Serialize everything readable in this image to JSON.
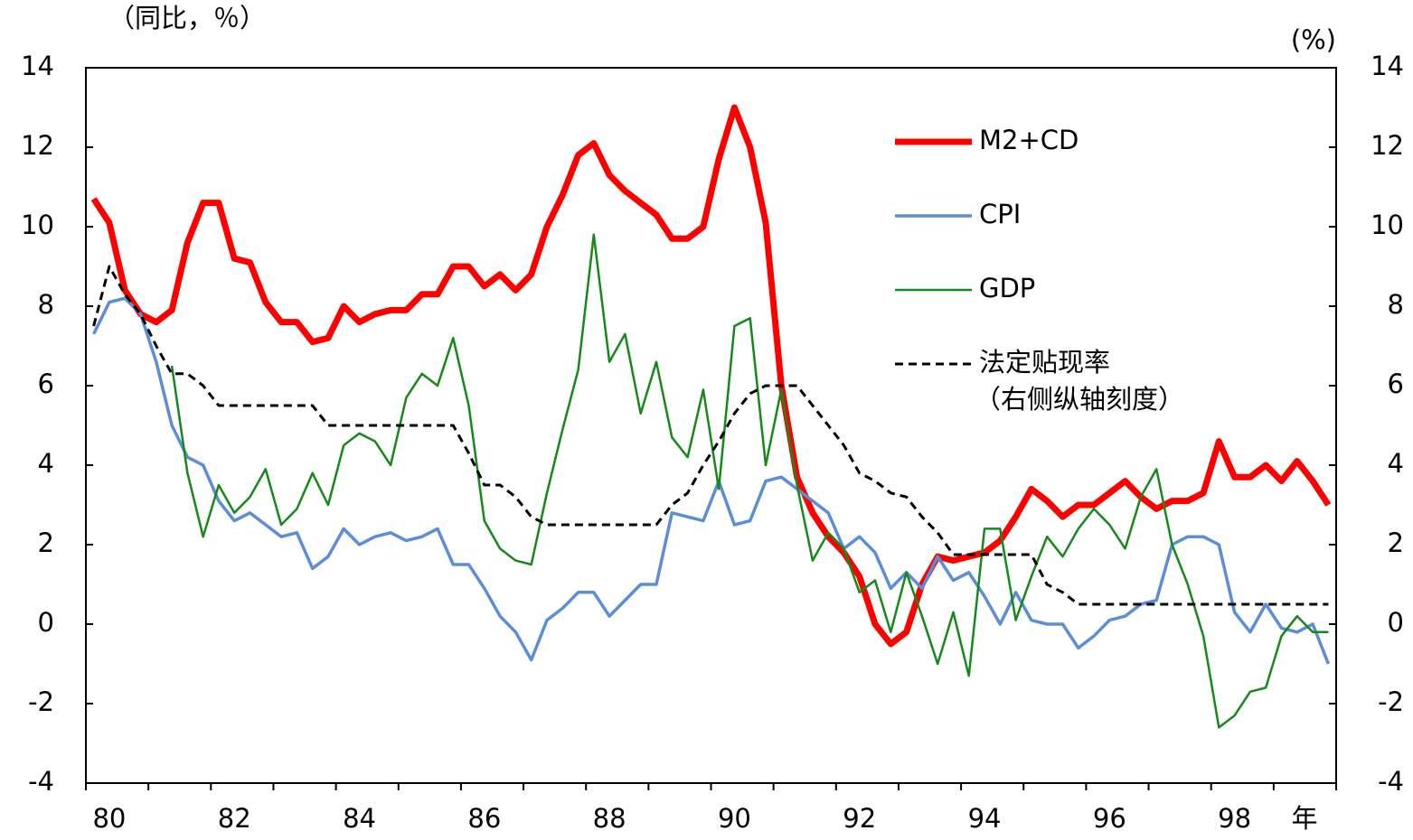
{
  "chart_data": {
    "type": "line",
    "y_label": "（同比，％）",
    "y2_label": "(%)",
    "x_unit": "年",
    "categories": [
      null,
      "80",
      null,
      null,
      null,
      null,
      null,
      null,
      null,
      "82",
      null,
      null,
      null,
      null,
      null,
      null,
      null,
      "84",
      null,
      null,
      null,
      null,
      null,
      null,
      null,
      "86",
      null,
      null,
      null,
      null,
      null,
      null,
      null,
      "88",
      null,
      null,
      null,
      null,
      null,
      null,
      null,
      "90",
      null,
      null,
      null,
      null,
      null,
      null,
      null,
      "92",
      null,
      null,
      null,
      null,
      null,
      null,
      null,
      "94",
      null,
      null,
      null,
      null,
      null,
      null,
      null,
      "96",
      null,
      null,
      null,
      null,
      null,
      null,
      null,
      "98",
      null,
      null,
      null,
      null,
      null,
      null
    ],
    "ylim": [
      -4,
      14
    ],
    "yticks": [
      -4,
      -2,
      0,
      2,
      4,
      6,
      8,
      10,
      12,
      14
    ],
    "y2lim": [
      -4,
      14
    ],
    "y2ticks": [
      -4,
      -2,
      0,
      2,
      4,
      6,
      8,
      10,
      12,
      14
    ],
    "grid": false,
    "legend": "upper right",
    "series": [
      {
        "name": "M2+CD",
        "color": "#ff0000",
        "values": [
          10.7,
          10.1,
          8.4,
          7.8,
          7.6,
          7.9,
          9.6,
          10.6,
          10.6,
          9.2,
          9.1,
          8.1,
          7.6,
          7.6,
          7.1,
          7.2,
          8.0,
          7.6,
          7.8,
          7.9,
          7.9,
          8.3,
          8.3,
          9.0,
          9.0,
          8.5,
          8.8,
          8.4,
          8.8,
          10.0,
          10.8,
          11.8,
          12.1,
          11.3,
          10.9,
          10.6,
          10.3,
          9.7,
          9.7,
          10.0,
          11.7,
          13.0,
          12.0,
          10.1,
          6.0,
          3.7,
          2.8,
          2.2,
          1.8,
          1.2,
          0.0,
          -0.5,
          -0.2,
          1.0,
          1.7,
          1.6,
          1.7,
          1.8,
          2.1,
          2.7,
          3.4,
          3.1,
          2.7,
          3.0,
          3.0,
          3.3,
          3.6,
          3.2,
          2.9,
          3.1,
          3.1,
          3.3,
          4.6,
          3.7,
          3.7,
          4.0,
          3.6,
          4.1,
          3.6,
          3.0
        ]
      },
      {
        "name": "CPI",
        "color": "#5b8ed6",
        "values": [
          7.3,
          8.1,
          8.2,
          7.8,
          6.6,
          5.0,
          4.2,
          4.0,
          3.1,
          2.6,
          2.8,
          2.5,
          2.2,
          2.3,
          1.4,
          1.7,
          2.4,
          2.0,
          2.2,
          2.3,
          2.1,
          2.2,
          2.4,
          1.5,
          1.5,
          0.9,
          0.2,
          -0.2,
          -0.9,
          0.1,
          0.4,
          0.8,
          0.8,
          0.2,
          0.6,
          1.0,
          1.0,
          2.8,
          2.7,
          2.6,
          3.6,
          2.5,
          2.6,
          3.6,
          3.7,
          3.4,
          3.1,
          2.8,
          1.9,
          2.2,
          1.8,
          0.9,
          1.3,
          0.9,
          1.7,
          1.1,
          1.3,
          0.7,
          0.0,
          0.8,
          0.1,
          0.0,
          0.0,
          -0.6,
          -0.3,
          0.1,
          0.2,
          0.5,
          0.6,
          2.0,
          2.2,
          2.2,
          2.0,
          0.3,
          -0.2,
          0.5,
          -0.1,
          -0.2,
          0.0,
          -1.0
        ]
      },
      {
        "name": "GDP",
        "color": "#16891a",
        "values": [
          null,
          null,
          null,
          null,
          null,
          6.5,
          3.8,
          2.2,
          3.5,
          2.8,
          3.2,
          3.9,
          2.5,
          2.9,
          3.8,
          3.0,
          4.5,
          4.8,
          4.6,
          4.0,
          5.7,
          6.3,
          6.0,
          7.2,
          5.5,
          2.6,
          1.9,
          1.6,
          1.5,
          3.3,
          4.9,
          6.4,
          9.8,
          6.6,
          7.3,
          5.3,
          6.6,
          4.7,
          4.2,
          5.9,
          3.4,
          7.5,
          7.7,
          4.0,
          5.9,
          3.5,
          1.6,
          2.3,
          1.9,
          0.8,
          1.1,
          -0.2,
          1.3,
          0.2,
          -1.0,
          0.3,
          -1.3,
          2.4,
          2.4,
          0.1,
          1.2,
          2.2,
          1.7,
          2.4,
          2.9,
          2.5,
          1.9,
          3.2,
          3.9,
          2.0,
          1.0,
          -0.3,
          -2.6,
          -2.3,
          -1.7,
          -1.6,
          -0.3,
          0.2,
          -0.2,
          -0.2
        ]
      },
      {
        "name": "法定贴现率",
        "note": "（右侧纵轴刻度）",
        "color": "#000000",
        "dashed": true,
        "axis": "y2",
        "values": [
          7.5,
          9.0,
          8.3,
          7.8,
          7.0,
          6.3,
          6.3,
          6.0,
          5.5,
          5.5,
          5.5,
          5.5,
          5.5,
          5.5,
          5.5,
          5.0,
          5.0,
          5.0,
          5.0,
          5.0,
          5.0,
          5.0,
          5.0,
          5.0,
          4.3,
          3.5,
          3.5,
          3.2,
          2.7,
          2.5,
          2.5,
          2.5,
          2.5,
          2.5,
          2.5,
          2.5,
          2.5,
          3.0,
          3.3,
          4.0,
          4.6,
          5.3,
          5.8,
          6.0,
          6.0,
          6.0,
          5.5,
          5.0,
          4.5,
          3.8,
          3.6,
          3.3,
          3.2,
          2.7,
          2.3,
          1.75,
          1.75,
          1.75,
          1.75,
          1.75,
          1.75,
          1.0,
          0.8,
          0.5,
          0.5,
          0.5,
          0.5,
          0.5,
          0.5,
          0.5,
          0.5,
          0.5,
          0.5,
          0.5,
          0.5,
          0.5,
          0.5,
          0.5,
          0.5,
          0.5
        ]
      }
    ]
  }
}
